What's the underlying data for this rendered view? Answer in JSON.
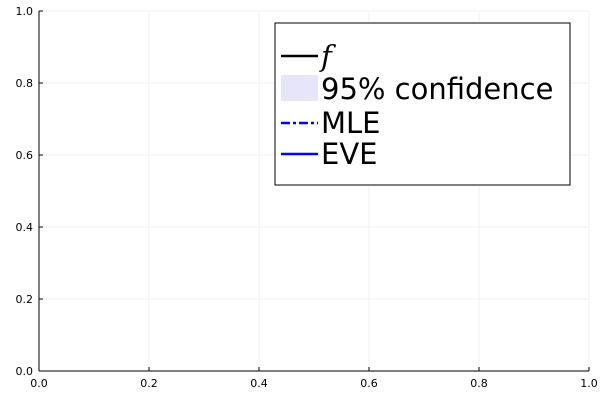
{
  "chart_data": {
    "type": "line",
    "title": "",
    "xlabel": "",
    "ylabel": "",
    "xlim": [
      0,
      1
    ],
    "ylim": [
      0,
      1
    ],
    "x_ticks": [
      0.0,
      0.2,
      0.4,
      0.6,
      0.8,
      1.0
    ],
    "y_ticks": [
      0.0,
      0.2,
      0.4,
      0.6,
      0.8,
      1.0
    ],
    "x_tick_labels": [
      "0.0",
      "0.2",
      "0.4",
      "0.6",
      "0.8",
      "1.0"
    ],
    "y_tick_labels": [
      "0.0",
      "0.2",
      "0.4",
      "0.6",
      "0.8",
      "1.0"
    ],
    "grid": true,
    "legend_position": "top-right",
    "series": [
      {
        "name": "f",
        "kind": "line",
        "style": "solid",
        "color": "#000000",
        "x": [],
        "y": []
      },
      {
        "name": "95% confidence",
        "kind": "band",
        "color": "#e6e6fa",
        "x": [],
        "y": []
      },
      {
        "name": "MLE",
        "kind": "line",
        "style": "dashdot",
        "color": "#0000ff",
        "x": [],
        "y": []
      },
      {
        "name": "EVE",
        "kind": "line",
        "style": "solid",
        "color": "#0000ff",
        "x": [],
        "y": []
      }
    ]
  }
}
